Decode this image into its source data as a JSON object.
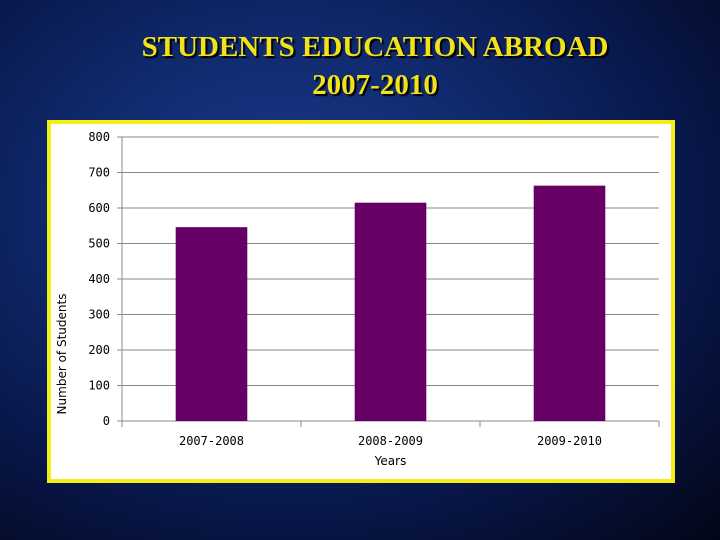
{
  "slide": {
    "title_line1": "STUDENTS EDUCATION ABROAD",
    "title_line2": "2007-2010"
  },
  "colors": {
    "title": "#f2e21a",
    "frame": "#f4ee14",
    "bar": "#660066",
    "gridline": "#888888"
  },
  "chart_data": {
    "type": "bar",
    "title": "",
    "xlabel": "Years",
    "ylabel": "Number of Students",
    "categories": [
      "2007-2008",
      "2008-2009",
      "2009-2010"
    ],
    "values": [
      546,
      615,
      663
    ],
    "ylim": [
      0,
      800
    ],
    "yticks": [
      0,
      100,
      200,
      300,
      400,
      500,
      600,
      700,
      800
    ],
    "grid": true,
    "legend": "none"
  }
}
